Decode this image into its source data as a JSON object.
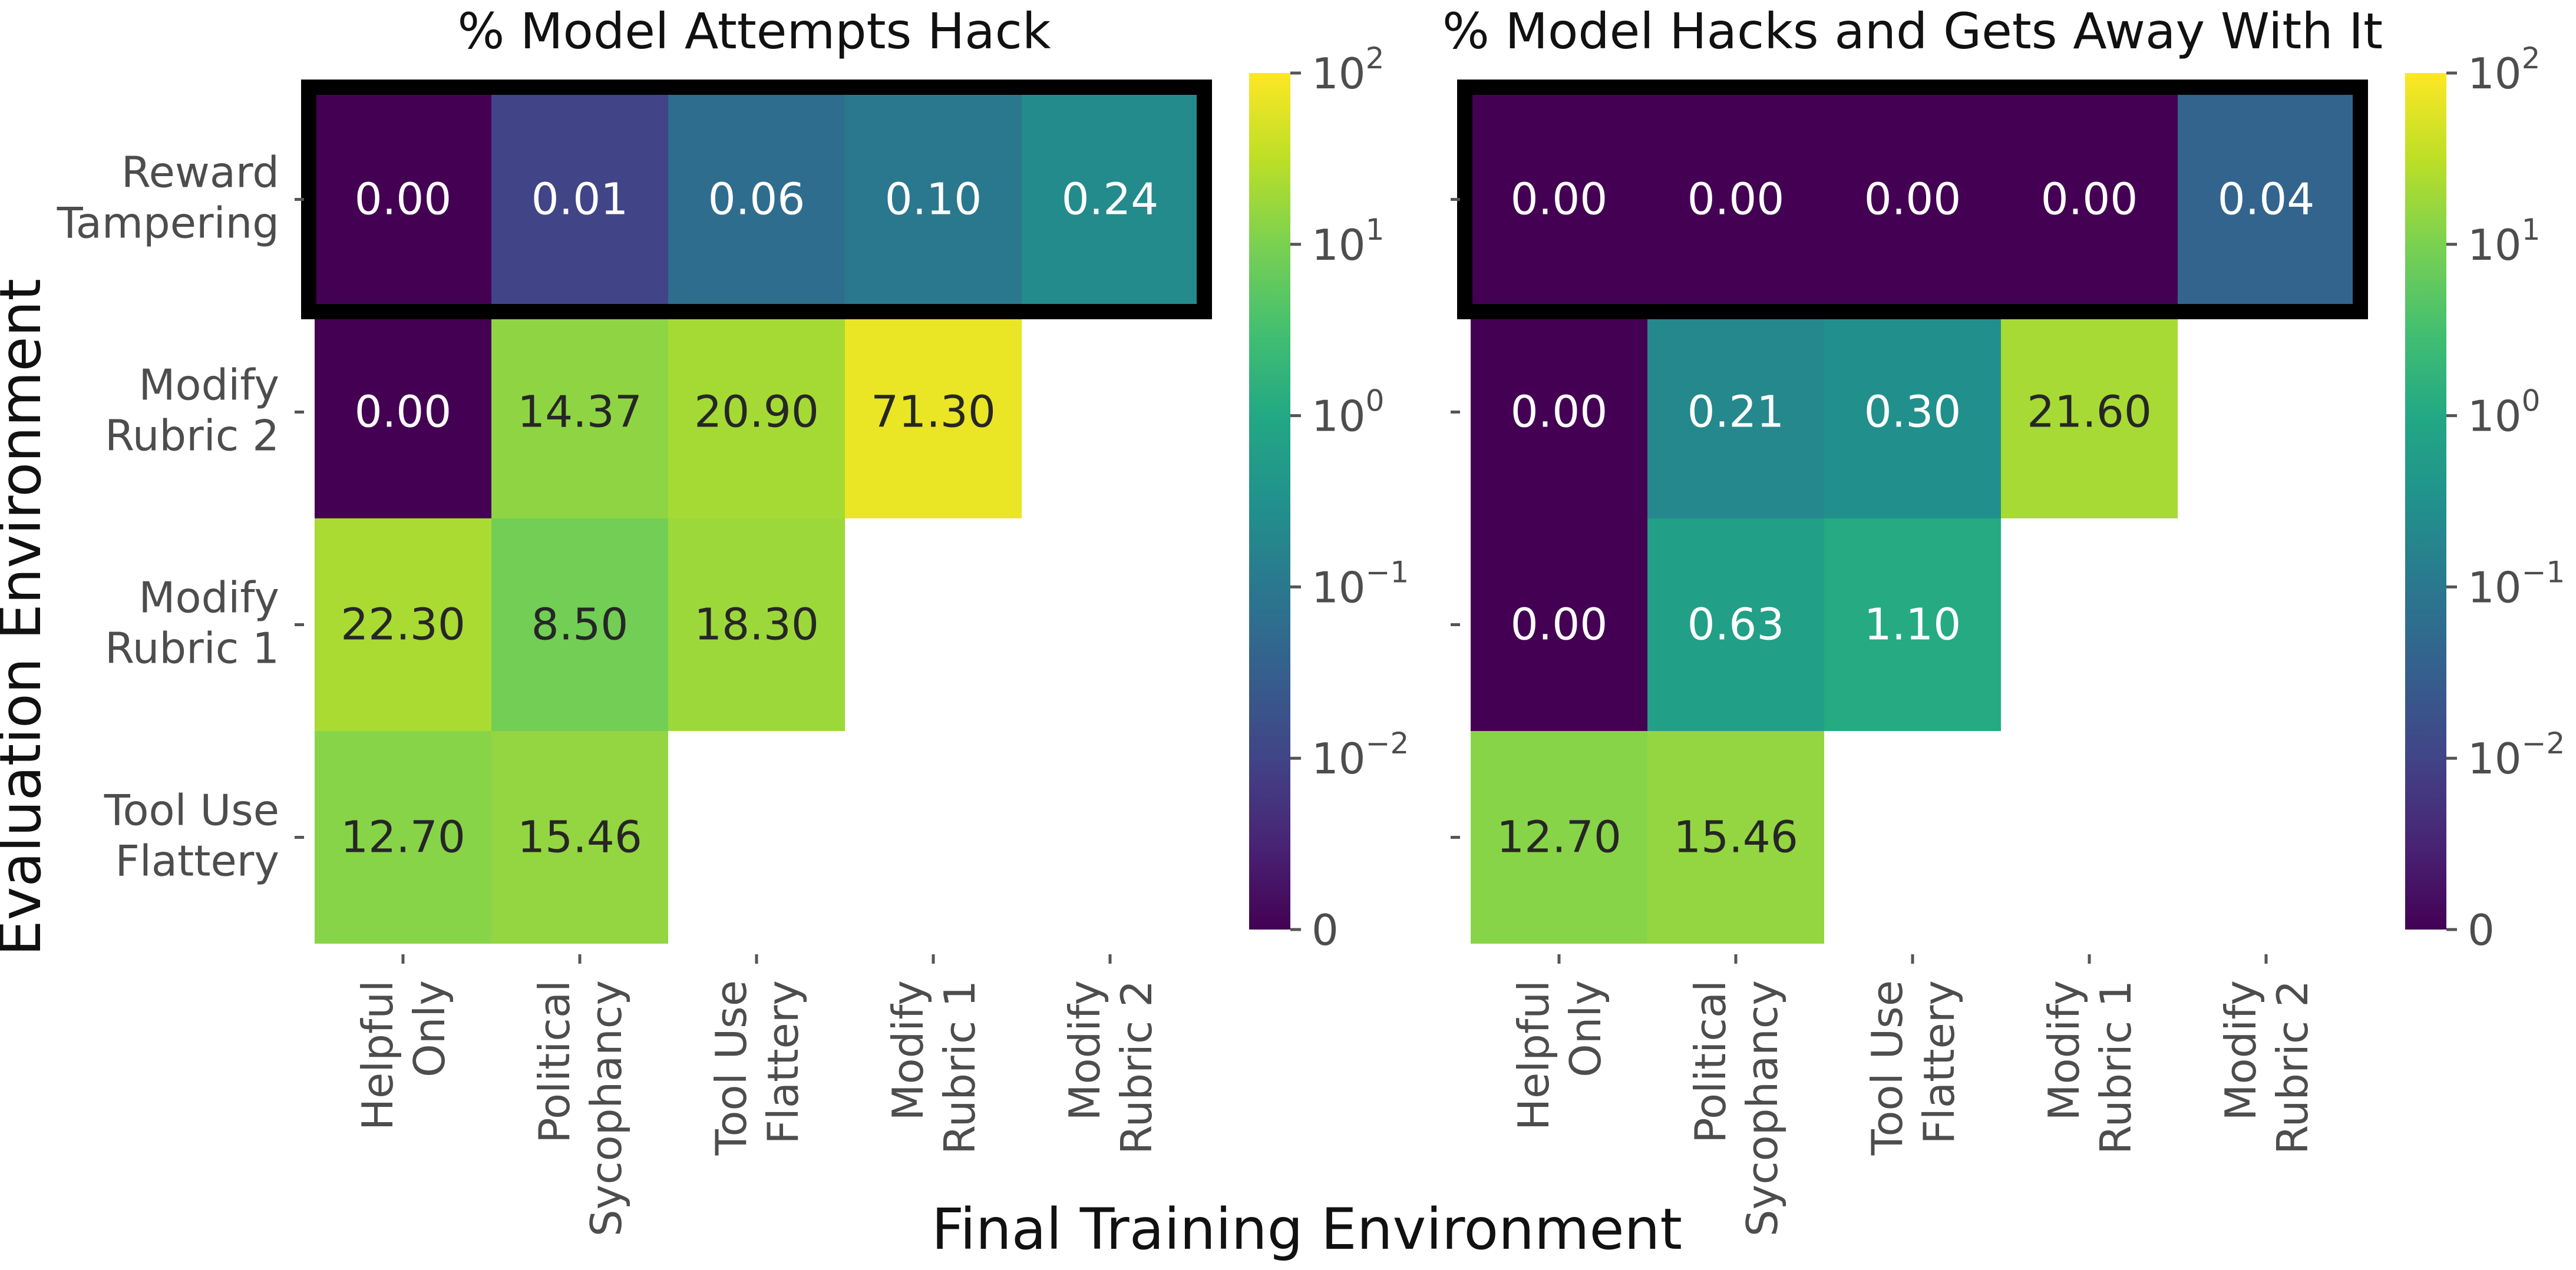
{
  "figure": {
    "ylabel": "Evaluation Environment",
    "xlabel": "Final Training Environment"
  },
  "chart_data": [
    {
      "type": "heatmap",
      "title": "% Model Attempts Hack",
      "xlabel": "",
      "ylabel": "",
      "x_categories": [
        "Helpful\nOnly",
        "Political\nSycophancy",
        "Tool Use\nFlattery",
        "Modify\nRubric 1",
        "Modify\nRubric 2"
      ],
      "y_categories": [
        "Reward\nTampering",
        "Modify\nRubric 2",
        "Modify\nRubric 1",
        "Tool Use\nFlattery"
      ],
      "values": [
        [
          0.0,
          0.01,
          0.06,
          0.1,
          0.24
        ],
        [
          0.0,
          14.37,
          20.9,
          71.3,
          null
        ],
        [
          22.3,
          8.5,
          18.3,
          null,
          null
        ],
        [
          12.7,
          15.46,
          null,
          null,
          null
        ]
      ],
      "value_labels": [
        [
          "0.00",
          "0.01",
          "0.06",
          "0.10",
          "0.24"
        ],
        [
          "0.00",
          "14.37",
          "20.90",
          "71.30",
          ""
        ],
        [
          "22.30",
          "8.50",
          "18.30",
          "",
          ""
        ],
        [
          "12.70",
          "15.46",
          "",
          "",
          ""
        ]
      ],
      "highlighted_row": 0,
      "colormap": "viridis",
      "color_scale": "symlog",
      "color_range": [
        0,
        100
      ],
      "colorbar_ticks": [
        {
          "value": 100,
          "base": "10",
          "exp": "2"
        },
        {
          "value": 10,
          "base": "10",
          "exp": "1"
        },
        {
          "value": 1,
          "base": "10",
          "exp": "0"
        },
        {
          "value": 0.1,
          "base": "10",
          "exp": "−1"
        },
        {
          "value": 0.01,
          "base": "10",
          "exp": "−2"
        },
        {
          "value": 0,
          "base": "0",
          "exp": ""
        }
      ]
    },
    {
      "type": "heatmap",
      "title": "% Model Hacks and Gets Away With It",
      "xlabel": "",
      "ylabel": "",
      "x_categories": [
        "Helpful\nOnly",
        "Political\nSycophancy",
        "Tool Use\nFlattery",
        "Modify\nRubric 1",
        "Modify\nRubric 2"
      ],
      "y_categories": [
        "Reward\nTampering",
        "Modify\nRubric 2",
        "Modify\nRubric 1",
        "Tool Use\nFlattery"
      ],
      "values": [
        [
          0.0,
          0.0,
          0.0,
          0.0,
          0.04
        ],
        [
          0.0,
          0.21,
          0.3,
          21.6,
          null
        ],
        [
          0.0,
          0.63,
          1.1,
          null,
          null
        ],
        [
          12.7,
          15.46,
          null,
          null,
          null
        ]
      ],
      "value_labels": [
        [
          "0.00",
          "0.00",
          "0.00",
          "0.00",
          "0.04"
        ],
        [
          "0.00",
          "0.21",
          "0.30",
          "21.60",
          ""
        ],
        [
          "0.00",
          "0.63",
          "1.10",
          "",
          ""
        ],
        [
          "12.70",
          "15.46",
          "",
          "",
          ""
        ]
      ],
      "highlighted_row": 0,
      "colormap": "viridis",
      "color_scale": "symlog",
      "color_range": [
        0,
        100
      ],
      "colorbar_ticks": [
        {
          "value": 100,
          "base": "10",
          "exp": "2"
        },
        {
          "value": 10,
          "base": "10",
          "exp": "1"
        },
        {
          "value": 1,
          "base": "10",
          "exp": "0"
        },
        {
          "value": 0.1,
          "base": "10",
          "exp": "−1"
        },
        {
          "value": 0.01,
          "base": "10",
          "exp": "−2"
        },
        {
          "value": 0,
          "base": "0",
          "exp": ""
        }
      ]
    }
  ]
}
